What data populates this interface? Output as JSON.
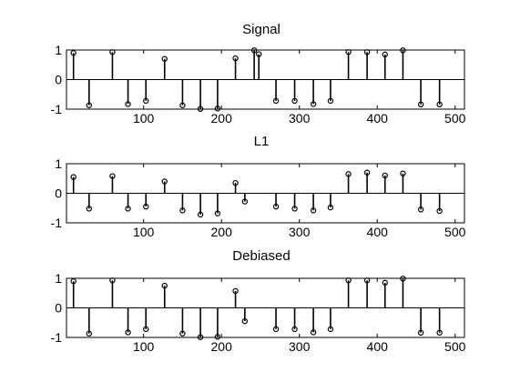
{
  "chart_data": [
    {
      "type": "stem",
      "title": "Signal",
      "xlim": [
        1,
        512
      ],
      "ylim": [
        -1,
        1
      ],
      "xticks": [
        100,
        200,
        300,
        400,
        500
      ],
      "yticks": [
        -1,
        0,
        1
      ],
      "series": [
        {
          "x": [
            10,
            30,
            60,
            80,
            103,
            127,
            150,
            173,
            195,
            218,
            242,
            248,
            270,
            294,
            318,
            340,
            363,
            387,
            410,
            433,
            456,
            480
          ],
          "values": [
            0.9,
            -0.87,
            0.93,
            -0.83,
            -0.72,
            0.7,
            -0.87,
            -0.99,
            -0.98,
            0.72,
            0.99,
            0.86,
            -0.72,
            -0.72,
            -0.83,
            -0.72,
            0.93,
            0.93,
            0.85,
            0.99,
            -0.84,
            -0.84
          ]
        }
      ]
    },
    {
      "type": "stem",
      "title": "L1",
      "xlim": [
        1,
        512
      ],
      "ylim": [
        -1,
        1
      ],
      "xticks": [
        100,
        200,
        300,
        400,
        500
      ],
      "yticks": [
        -1,
        0,
        1
      ],
      "series": [
        {
          "x": [
            10,
            30,
            60,
            80,
            103,
            127,
            150,
            173,
            195,
            218,
            230,
            270,
            294,
            318,
            340,
            363,
            387,
            410,
            433,
            456,
            480
          ],
          "values": [
            0.55,
            -0.52,
            0.58,
            -0.52,
            -0.45,
            0.4,
            -0.58,
            -0.72,
            -0.68,
            0.35,
            -0.28,
            -0.45,
            -0.52,
            -0.58,
            -0.48,
            0.65,
            0.7,
            0.6,
            0.67,
            -0.55,
            -0.6
          ]
        }
      ]
    },
    {
      "type": "stem",
      "title": "Debiased",
      "xlim": [
        1,
        512
      ],
      "ylim": [
        -1,
        1
      ],
      "xticks": [
        100,
        200,
        300,
        400,
        500
      ],
      "yticks": [
        -1,
        0,
        1
      ],
      "series": [
        {
          "x": [
            10,
            30,
            60,
            80,
            103,
            127,
            150,
            173,
            195,
            218,
            230,
            270,
            294,
            318,
            340,
            363,
            387,
            410,
            433,
            456,
            480
          ],
          "values": [
            0.9,
            -0.87,
            0.93,
            -0.83,
            -0.72,
            0.75,
            -0.87,
            -0.99,
            -0.98,
            0.57,
            -0.45,
            -0.72,
            -0.72,
            -0.83,
            -0.72,
            0.93,
            0.93,
            0.85,
            0.99,
            -0.84,
            -0.84
          ]
        }
      ]
    }
  ]
}
